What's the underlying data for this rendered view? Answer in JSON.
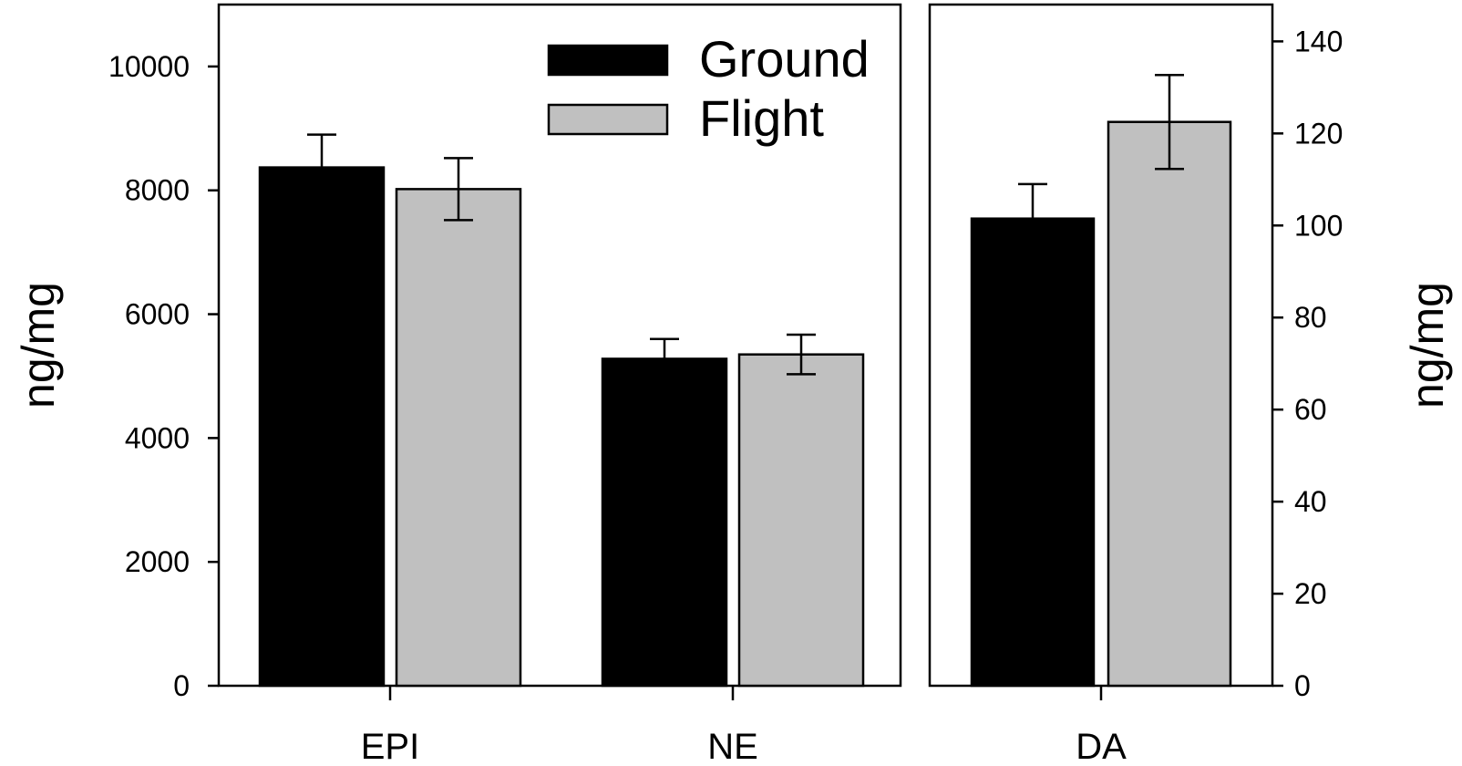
{
  "chart_data": [
    {
      "type": "bar",
      "categories": [
        "EPI",
        "NE"
      ],
      "series": [
        {
          "name": "Ground",
          "values": [
            8370,
            5280
          ],
          "errors": [
            530,
            320
          ],
          "color": "#000000"
        },
        {
          "name": "Flight",
          "values": [
            8020,
            5350
          ],
          "errors": [
            500,
            320
          ],
          "color": "#c0c0c0"
        }
      ],
      "ylabel": "ng/mg",
      "ylim": [
        0,
        11000
      ],
      "yticks": [
        "0",
        "2000",
        "4000",
        "6000",
        "8000",
        "10000"
      ],
      "legend": {
        "position": "top-right",
        "entries": [
          "Ground",
          "Flight"
        ]
      },
      "grid": false
    },
    {
      "type": "bar",
      "categories": [
        "DA"
      ],
      "series": [
        {
          "name": "Ground",
          "values": [
            101.5
          ],
          "errors": [
            7.5
          ],
          "color": "#000000"
        },
        {
          "name": "Flight",
          "values": [
            122.5
          ],
          "errors": [
            10.2
          ],
          "color": "#c0c0c0"
        }
      ],
      "ylabel": "ng/mg",
      "y_axis_side": "right",
      "ylim": [
        0,
        148
      ],
      "yticks": [
        "0",
        "20",
        "40",
        "60",
        "80",
        "100",
        "120",
        "140"
      ],
      "grid": false
    }
  ]
}
